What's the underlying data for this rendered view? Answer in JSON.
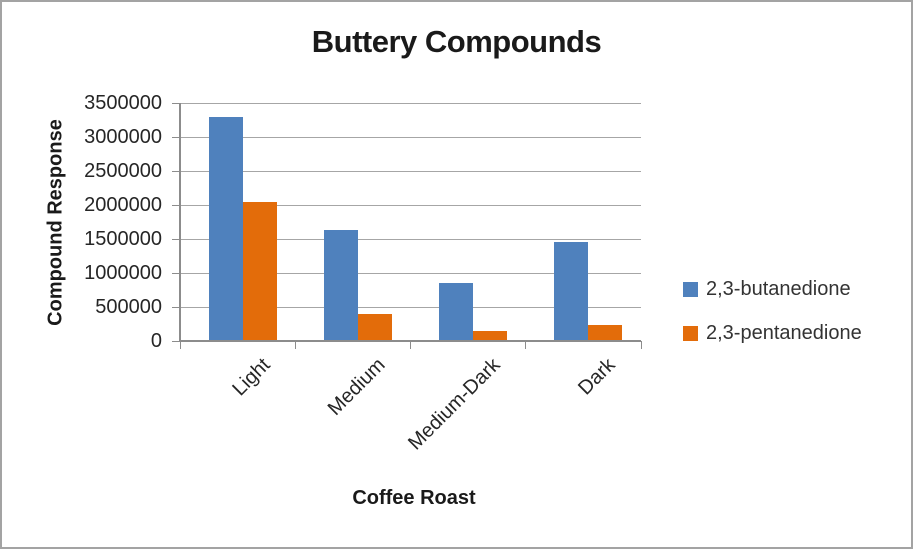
{
  "chart_data": {
    "type": "bar",
    "title": "Buttery Compounds",
    "xlabel": "Coffee Roast",
    "ylabel": "Compound Response",
    "categories": [
      "Light",
      "Medium",
      "Medium-Dark",
      "Dark"
    ],
    "series": [
      {
        "name": "2,3-butanedione",
        "color": "#4F81BD",
        "values": [
          3300000,
          1630000,
          850000,
          1460000
        ]
      },
      {
        "name": "2,3-pentanedione",
        "color": "#E36C0A",
        "values": [
          2050000,
          400000,
          150000,
          230000
        ]
      }
    ],
    "ylim": [
      0,
      3500000
    ],
    "yticks": [
      0,
      500000,
      1000000,
      1500000,
      2000000,
      2500000,
      3000000,
      3500000
    ],
    "ytick_labels": [
      "0",
      "500000",
      "1000000",
      "1500000",
      "2000000",
      "2500000",
      "3000000",
      "3500000"
    ],
    "grid": true,
    "legend_position": "right",
    "legend": [
      "2,3-butanedione",
      "2,3-pentanedione"
    ]
  },
  "colors": {
    "background": "#FFFFFF",
    "border": "#A3A3A3",
    "gridline": "#A6A6A6",
    "axis": "#8C8C8C",
    "tick_text": "#262626",
    "title_text": "#1A1A1A",
    "legend_text": "#333333",
    "series_blue": "#4F81BD",
    "series_orange": "#E36C0A"
  }
}
